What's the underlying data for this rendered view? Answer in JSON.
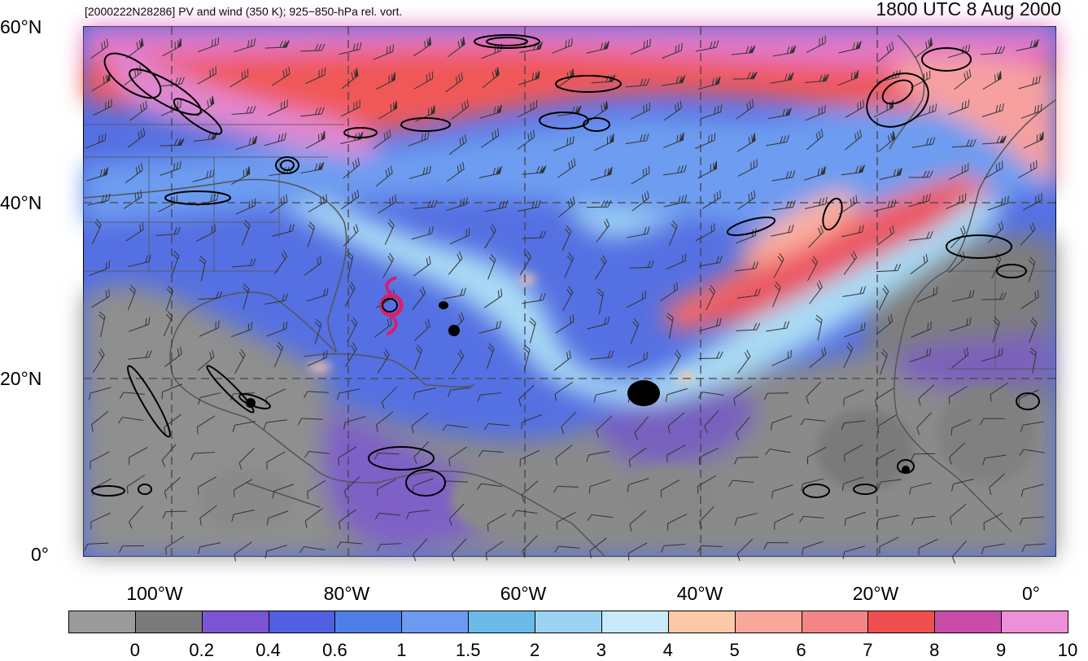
{
  "header": {
    "subtitle": "[2000222N28286] PV and wind (350 K); 925−850-hPa rel. vort.",
    "timestamp": "1800 UTC 8 Aug 2000"
  },
  "axes": {
    "lat_labels": [
      "60°N",
      "40°N",
      "20°N",
      "0°"
    ],
    "lon_labels": [
      "100°W",
      "80°W",
      "60°W",
      "40°W",
      "20°W",
      "0°"
    ]
  },
  "colorbar": {
    "labels": [
      "0",
      "0.2",
      "0.4",
      "0.6",
      "1",
      "1.5",
      "2",
      "3",
      "4",
      "5",
      "6",
      "7",
      "8",
      "9",
      "10"
    ],
    "colors": [
      "#9b9b9b",
      "#7a7a7a",
      "#7b55d6",
      "#5060e0",
      "#4d7fe6",
      "#6b9af0",
      "#6bbbe8",
      "#9dd3f2",
      "#c8e9fa",
      "#fbc8a8",
      "#f8a79a",
      "#f38585",
      "#f04f4f",
      "#c94da8",
      "#ee90d8"
    ]
  },
  "map": {
    "storm_symbol_color": "#d81e6c",
    "contour_color": "#000000",
    "grid_line_color": "#444444"
  }
}
